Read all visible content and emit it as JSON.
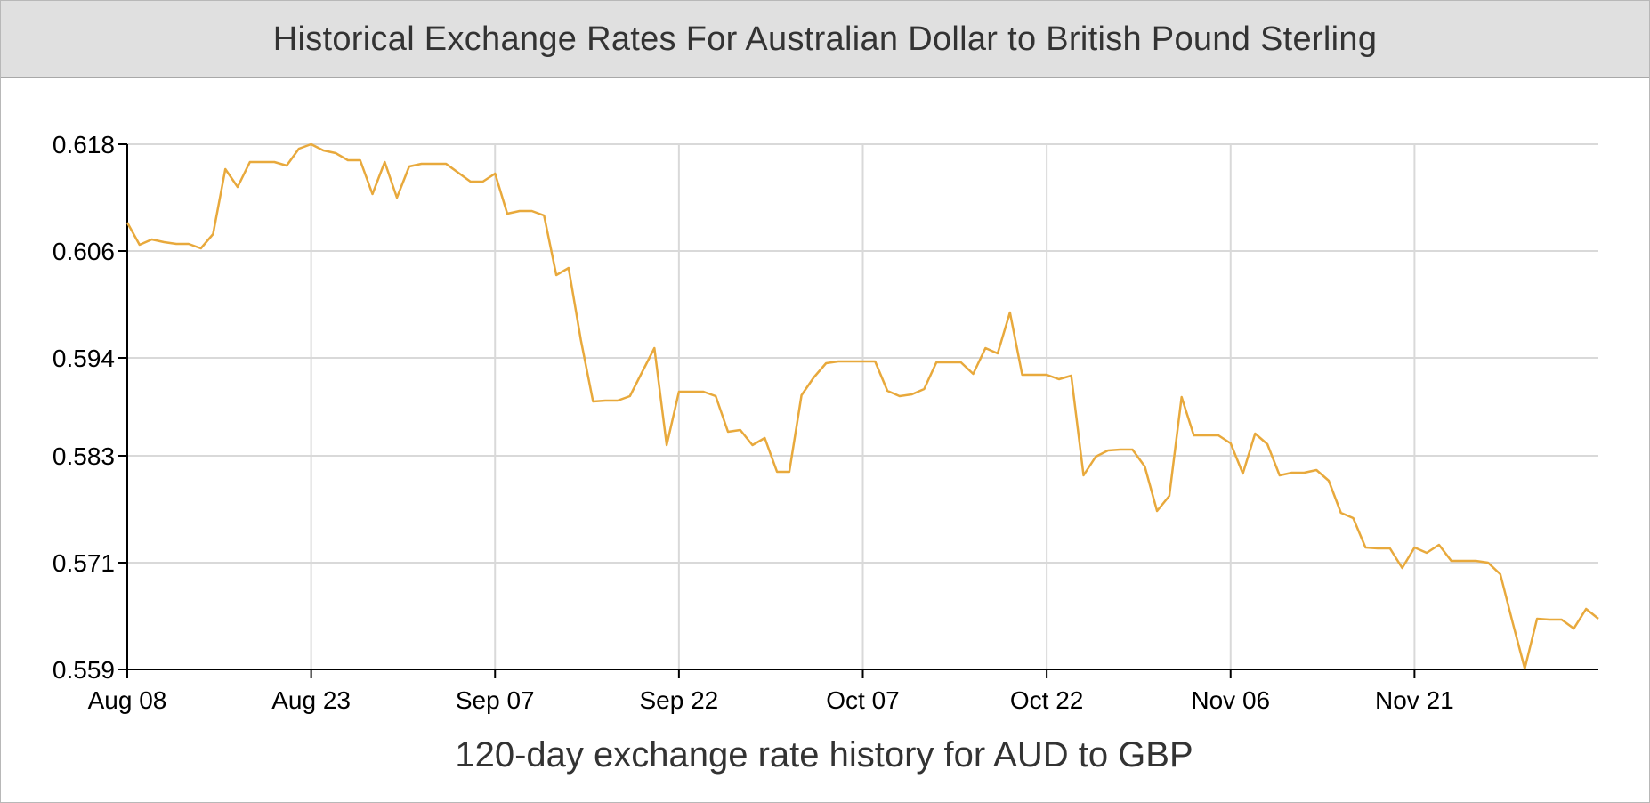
{
  "page": {
    "title": "Historical Exchange Rates For Australian Dollar to British Pound Sterling",
    "caption": "120-day exchange rate history for AUD to GBP"
  },
  "colors": {
    "line": "#e8a93c",
    "grid": "#d9d9d9",
    "axis": "#000000",
    "header_bg": "#e0e0e0"
  },
  "chart_data": {
    "type": "line",
    "title": "Historical Exchange Rates For Australian Dollar to British Pound Sterling",
    "xlabel": "120-day exchange rate history for AUD to GBP",
    "ylabel": "",
    "x_start": "Aug 08",
    "ylim": [
      0.559,
      0.618
    ],
    "yticks": [
      "0.618",
      "0.606",
      "0.594",
      "0.583",
      "0.571",
      "0.559"
    ],
    "xtick_labels": [
      "Aug 08",
      "Aug 23",
      "Sep 07",
      "Sep 22",
      "Oct 07",
      "Oct 22",
      "Nov 06",
      "Nov 21"
    ],
    "xtick_days": [
      0,
      15,
      30,
      45,
      60,
      75,
      90,
      105
    ],
    "x_days_max": 120,
    "grid": true,
    "legend": "none",
    "series": [
      {
        "x": [
          0,
          1,
          2,
          3,
          4,
          5,
          6,
          7,
          8,
          9,
          10,
          11,
          12,
          13,
          14,
          15,
          16,
          17,
          18,
          19,
          20,
          21,
          22,
          23,
          24,
          25,
          26,
          27,
          28,
          29,
          30,
          31,
          32,
          33,
          34,
          35,
          36,
          37,
          38,
          39,
          40,
          41,
          42,
          43,
          44,
          45,
          46,
          47,
          48,
          49,
          50,
          51,
          52,
          53,
          54,
          55,
          56,
          57,
          58,
          59,
          60,
          61,
          62,
          63,
          64,
          65,
          66,
          67,
          68,
          69,
          70,
          71,
          72,
          73,
          74,
          75,
          76,
          77,
          78,
          79,
          80,
          81,
          82,
          83,
          84,
          85,
          86,
          87,
          88,
          89,
          90,
          91,
          92,
          93,
          94,
          95,
          96,
          97,
          98,
          99,
          100,
          101,
          102,
          103,
          104,
          105,
          106,
          107,
          108,
          109,
          110,
          111,
          112,
          113,
          114,
          115,
          116,
          117,
          118,
          119,
          120
        ],
        "values": [
          0.6092,
          0.6067,
          0.6073,
          0.607,
          0.6068,
          0.6068,
          0.6063,
          0.6079,
          0.6152,
          0.6132,
          0.616,
          0.616,
          0.616,
          0.6156,
          0.6175,
          0.618,
          0.6173,
          0.617,
          0.6162,
          0.6162,
          0.6124,
          0.616,
          0.612,
          0.6155,
          0.6158,
          0.6158,
          0.6158,
          0.6148,
          0.6138,
          0.6138,
          0.6147,
          0.6102,
          0.6105,
          0.6105,
          0.61,
          0.6033,
          0.6041,
          0.596,
          0.5891,
          0.5892,
          0.5892,
          0.5897,
          0.5924,
          0.5951,
          0.5842,
          0.5902,
          0.5902,
          0.5902,
          0.5897,
          0.5857,
          0.5859,
          0.5842,
          0.585,
          0.5812,
          0.5812,
          0.5898,
          0.5918,
          0.5934,
          0.5936,
          0.5936,
          0.5936,
          0.5936,
          0.5903,
          0.5897,
          0.5899,
          0.5905,
          0.5935,
          0.5935,
          0.5935,
          0.5922,
          0.5951,
          0.5945,
          0.5991,
          0.5921,
          0.5921,
          0.5921,
          0.5916,
          0.592,
          0.5808,
          0.5829,
          0.5836,
          0.5837,
          0.5837,
          0.5818,
          0.5768,
          0.5785,
          0.5896,
          0.5853,
          0.5853,
          0.5853,
          0.5844,
          0.581,
          0.5855,
          0.5843,
          0.5808,
          0.5811,
          0.5811,
          0.5814,
          0.5802,
          0.5766,
          0.576,
          0.5727,
          0.5726,
          0.5726,
          0.5704,
          0.5727,
          0.5721,
          0.573,
          0.5712,
          0.5712,
          0.5712,
          0.571,
          0.5697,
          0.5643,
          0.5591,
          0.5647,
          0.5646,
          0.5646,
          0.5636,
          0.5658,
          0.5647
        ]
      }
    ]
  }
}
